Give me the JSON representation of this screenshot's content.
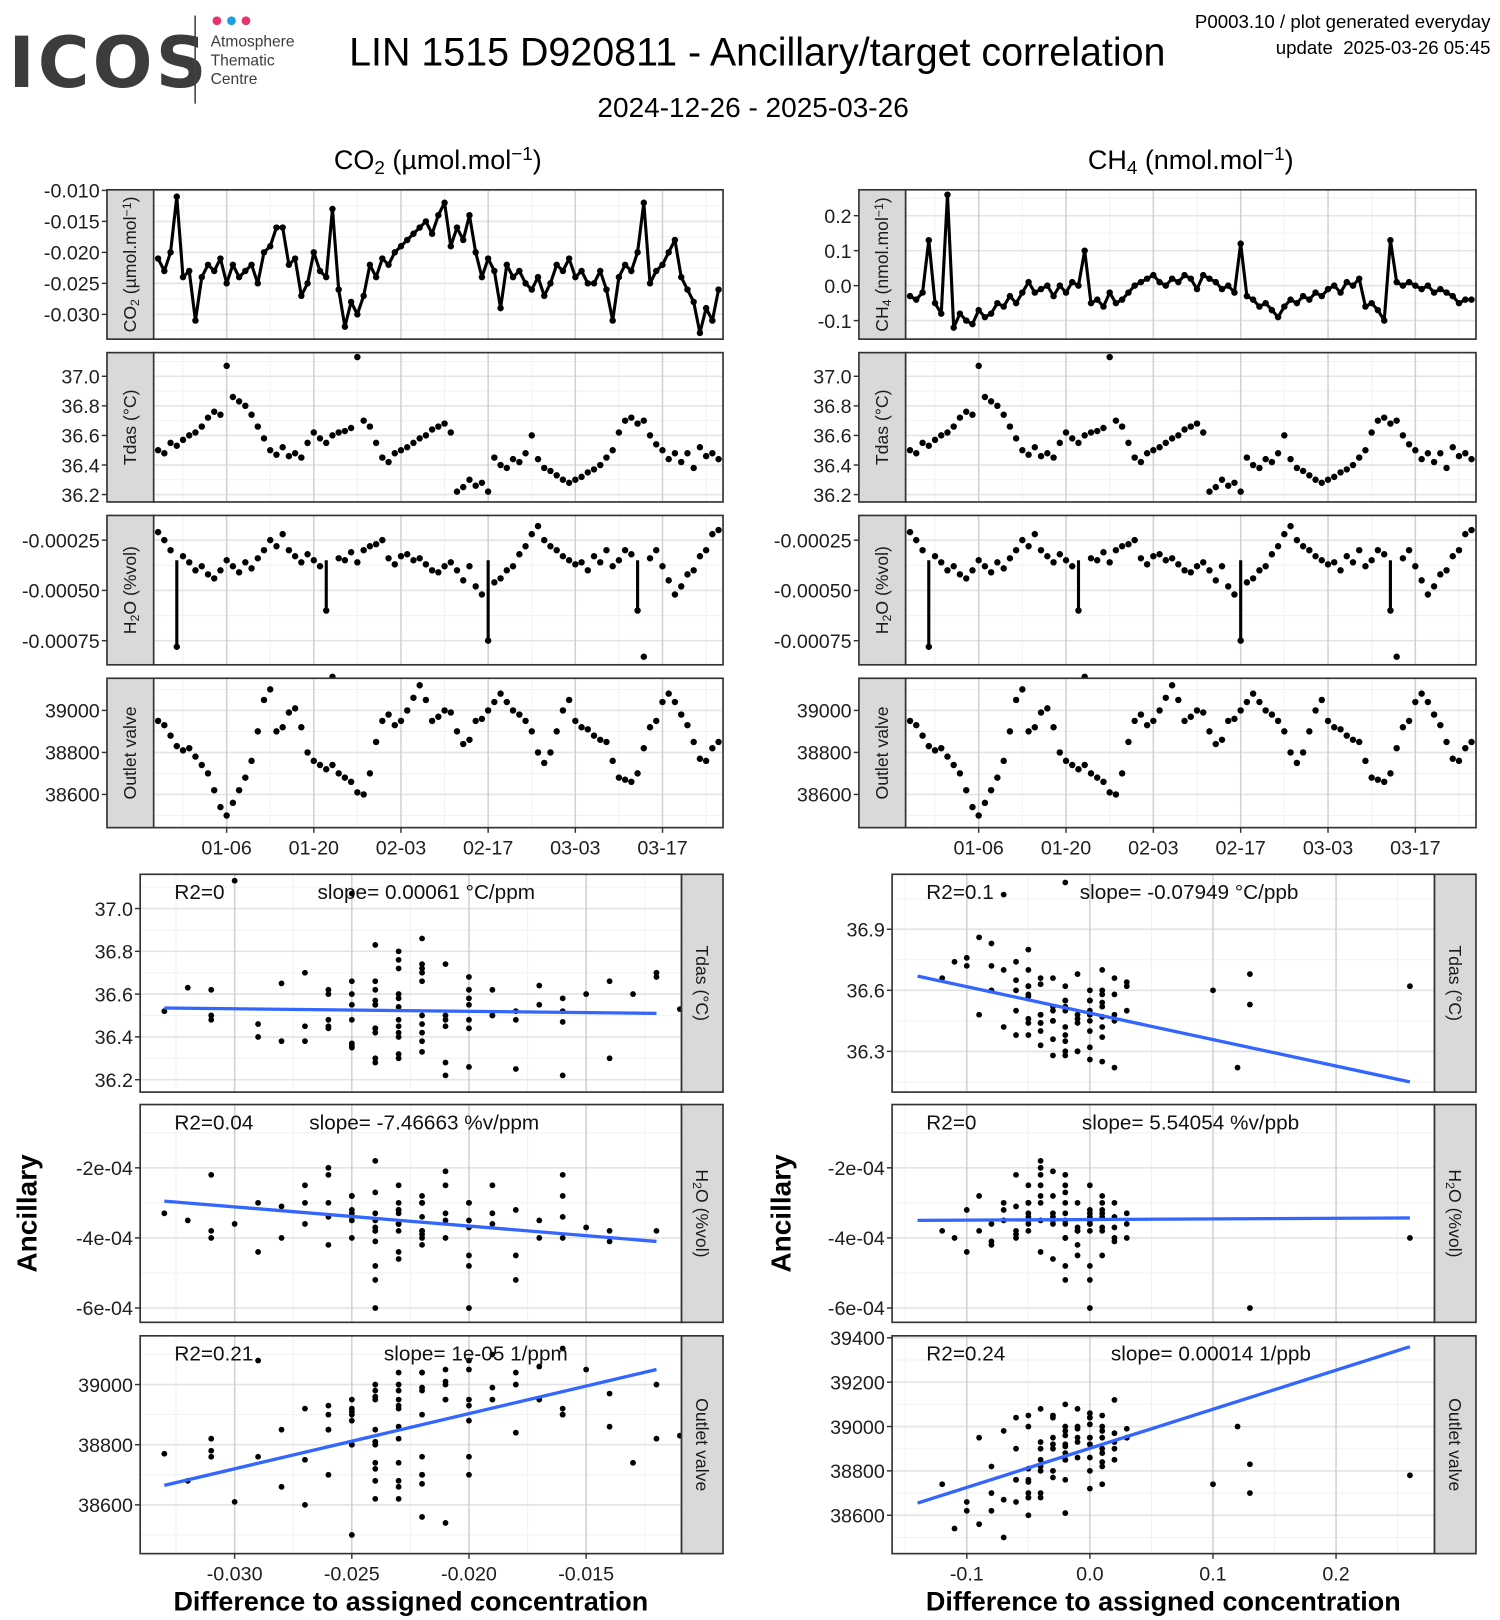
{
  "header": {
    "logo_text": "ICOS",
    "logo_sub": [
      "Atmosphere",
      "Thematic",
      "Centre"
    ],
    "logo_dot_colors": [
      "#e8336f",
      "#1aa0e0",
      "#e8336f"
    ],
    "title": "LIN 1515 D920811 - Ancillary/target correlation",
    "subtitle": "2024-12-26 - 2025-03-26",
    "meta_line1": "P0003.10 / plot generated everyday",
    "meta_line2": "update  2025-03-26 05:45"
  },
  "columns": [
    {
      "title": [
        {
          "t": "CO"
        },
        {
          "t": "2",
          "sub": true
        },
        {
          "t": " (µmol.mol"
        },
        {
          "t": "−1",
          "sup": true
        },
        {
          "t": ")"
        }
      ]
    },
    {
      "title": [
        {
          "t": "CH"
        },
        {
          "t": "4",
          "sub": true
        },
        {
          "t": " (nmol.mol"
        },
        {
          "t": "−1",
          "sup": true
        },
        {
          "t": ")"
        }
      ]
    }
  ],
  "chart_data": {
    "type": "faceted line + scatter",
    "colors": {
      "points": "#000000",
      "fit_line": "#3366ff",
      "strip_fill": "#d9d9d9"
    },
    "grid": true,
    "x_dates": [
      "12-26",
      "12-27",
      "12-28",
      "12-29",
      "12-30",
      "12-31",
      "01-01",
      "01-02",
      "01-03",
      "01-04",
      "01-05",
      "01-06",
      "01-07",
      "01-08",
      "01-09",
      "01-10",
      "01-11",
      "01-12",
      "01-13",
      "01-14",
      "01-15",
      "01-16",
      "01-17",
      "01-18",
      "01-19",
      "01-20",
      "01-21",
      "01-22",
      "01-23",
      "01-24",
      "01-25",
      "01-26",
      "01-27",
      "01-28",
      "01-29",
      "01-30",
      "01-31",
      "02-01",
      "02-02",
      "02-03",
      "02-04",
      "02-05",
      "02-06",
      "02-07",
      "02-08",
      "02-09",
      "02-10",
      "02-11",
      "02-12",
      "02-13",
      "02-14",
      "02-15",
      "02-16",
      "02-17",
      "02-18",
      "02-19",
      "02-20",
      "02-21",
      "02-22",
      "02-23",
      "02-24",
      "02-25",
      "02-26",
      "02-27",
      "02-28",
      "03-01",
      "03-02",
      "03-03",
      "03-04",
      "03-05",
      "03-06",
      "03-07",
      "03-08",
      "03-09",
      "03-10",
      "03-11",
      "03-12",
      "03-13",
      "03-14",
      "03-15",
      "03-16",
      "03-17",
      "03-18",
      "03-19",
      "03-20",
      "03-21",
      "03-22",
      "03-23",
      "03-24",
      "03-25",
      "03-26"
    ],
    "x_ticks": [
      "01-06",
      "01-20",
      "02-03",
      "02-17",
      "03-03",
      "03-17"
    ],
    "variables": {
      "co2": {
        "label": [
          {
            "t": "CO"
          },
          {
            "t": "2",
            "sub": true
          },
          {
            "t": " (µmol.mol"
          },
          {
            "t": "−1",
            "sup": true
          },
          {
            "t": ")"
          }
        ],
        "style": "line",
        "ylim": [
          -0.034,
          -0.0099
        ],
        "ticks": [
          "-0.010",
          "-0.015",
          "-0.020",
          "-0.025",
          "-0.030"
        ],
        "values": [
          -0.021,
          -0.023,
          -0.02,
          -0.011,
          -0.024,
          -0.023,
          -0.031,
          -0.024,
          -0.022,
          -0.023,
          -0.021,
          -0.025,
          -0.022,
          -0.024,
          -0.023,
          -0.022,
          -0.025,
          -0.02,
          -0.019,
          -0.016,
          -0.016,
          -0.022,
          -0.021,
          -0.027,
          -0.025,
          -0.02,
          -0.023,
          -0.024,
          -0.013,
          -0.026,
          -0.032,
          -0.028,
          -0.03,
          -0.027,
          -0.022,
          -0.024,
          -0.021,
          -0.022,
          -0.02,
          -0.019,
          -0.018,
          -0.017,
          -0.016,
          -0.015,
          -0.017,
          -0.014,
          -0.012,
          -0.019,
          -0.016,
          -0.018,
          -0.014,
          -0.02,
          -0.024,
          -0.021,
          -0.023,
          -0.029,
          -0.022,
          -0.024,
          -0.023,
          -0.025,
          -0.026,
          -0.024,
          -0.027,
          -0.025,
          -0.022,
          -0.023,
          -0.021,
          -0.024,
          -0.023,
          -0.025,
          -0.025,
          -0.023,
          -0.026,
          -0.031,
          -0.024,
          -0.022,
          -0.023,
          -0.02,
          -0.012,
          -0.025,
          -0.023,
          -0.022,
          -0.02,
          -0.018,
          -0.024,
          -0.026,
          -0.028,
          -0.033,
          -0.029,
          -0.031,
          -0.026
        ]
      },
      "ch4": {
        "label": [
          {
            "t": "CH"
          },
          {
            "t": "4",
            "sub": true
          },
          {
            "t": " (nmol.mol"
          },
          {
            "t": "−1",
            "sup": true
          },
          {
            "t": ")"
          }
        ],
        "style": "line",
        "ylim": [
          -0.153,
          0.274
        ],
        "ticks": [
          "0.2",
          "0.1",
          "0.0",
          "-0.1"
        ],
        "values": [
          -0.03,
          -0.04,
          -0.02,
          0.13,
          -0.05,
          -0.08,
          0.26,
          -0.12,
          -0.08,
          -0.1,
          -0.11,
          -0.07,
          -0.09,
          -0.08,
          -0.05,
          -0.06,
          -0.03,
          -0.05,
          -0.02,
          0.01,
          -0.02,
          -0.01,
          0.0,
          -0.03,
          0.0,
          -0.02,
          0.01,
          0.0,
          0.1,
          -0.05,
          -0.04,
          -0.06,
          -0.02,
          -0.05,
          -0.04,
          -0.02,
          0.0,
          0.01,
          0.02,
          0.03,
          0.01,
          0.0,
          0.02,
          0.01,
          0.03,
          0.02,
          -0.01,
          0.03,
          0.02,
          0.01,
          -0.01,
          0.0,
          -0.02,
          0.12,
          -0.03,
          -0.04,
          -0.06,
          -0.05,
          -0.07,
          -0.09,
          -0.06,
          -0.04,
          -0.05,
          -0.03,
          -0.04,
          -0.02,
          -0.03,
          -0.01,
          0.0,
          -0.02,
          0.01,
          0.0,
          0.02,
          -0.06,
          -0.05,
          -0.07,
          -0.1,
          0.13,
          0.01,
          0.0,
          0.01,
          0.0,
          -0.01,
          0.0,
          -0.02,
          -0.01,
          -0.02,
          -0.03,
          -0.05,
          -0.04,
          -0.04
        ]
      },
      "tdas": {
        "label": [
          {
            "t": "Tdas (°C)"
          }
        ],
        "style": "points",
        "ylim": [
          36.15,
          37.16
        ],
        "ticks": [
          "37.0",
          "36.8",
          "36.6",
          "36.4",
          "36.2"
        ],
        "values": [
          36.5,
          36.48,
          36.55,
          36.53,
          36.57,
          36.6,
          36.62,
          36.66,
          36.72,
          36.76,
          36.74,
          37.07,
          36.86,
          36.83,
          36.8,
          36.74,
          36.66,
          36.58,
          36.5,
          36.47,
          36.52,
          36.46,
          36.48,
          36.45,
          36.55,
          36.62,
          36.58,
          36.55,
          36.6,
          36.62,
          36.63,
          36.65,
          37.13,
          36.7,
          36.66,
          36.55,
          36.45,
          36.42,
          36.48,
          36.5,
          36.52,
          36.55,
          36.58,
          36.6,
          36.64,
          36.66,
          36.68,
          36.62,
          36.22,
          36.25,
          36.3,
          36.26,
          36.28,
          36.22,
          36.45,
          36.4,
          36.38,
          36.44,
          36.42,
          36.48,
          36.6,
          36.44,
          36.38,
          36.36,
          36.33,
          36.3,
          36.28,
          36.3,
          36.32,
          36.35,
          36.37,
          36.4,
          36.45,
          36.5,
          36.62,
          36.7,
          36.72,
          36.68,
          36.7,
          36.6,
          36.54,
          36.5,
          36.44,
          36.48,
          36.42,
          36.48,
          36.38,
          36.52,
          36.46,
          36.48,
          36.44
        ]
      },
      "h2o": {
        "label": [
          {
            "t": "H"
          },
          {
            "t": "2",
            "sub": true
          },
          {
            "t": "O (%vol)"
          }
        ],
        "style": "points",
        "ylim": [
          -0.00087,
          -0.000127
        ],
        "ticks": [
          "-0.00025",
          "-0.00050",
          "-0.00075"
        ],
        "values": [
          -0.00021,
          -0.00025,
          -0.0003,
          -0.00078,
          -0.00033,
          -0.00036,
          -0.0004,
          -0.00038,
          -0.00042,
          -0.00044,
          -0.0004,
          -0.00035,
          -0.00038,
          -0.00041,
          -0.00036,
          -0.00039,
          -0.00034,
          -0.0003,
          -0.00025,
          -0.00028,
          -0.00022,
          -0.0003,
          -0.00033,
          -0.00036,
          -0.00032,
          -0.00035,
          -0.00038,
          -0.0006,
          -0.00093,
          -0.00034,
          -0.00035,
          -0.00031,
          -0.00036,
          -0.0003,
          -0.00028,
          -0.00027,
          -0.00025,
          -0.00034,
          -0.00037,
          -0.00033,
          -0.00032,
          -0.00035,
          -0.00034,
          -0.00037,
          -0.0004,
          -0.00041,
          -0.00038,
          -0.00036,
          -0.0004,
          -0.00045,
          -0.00038,
          -0.00048,
          -0.00052,
          -0.00075,
          -0.00046,
          -0.00044,
          -0.0004,
          -0.00038,
          -0.00032,
          -0.00028,
          -0.00022,
          -0.00018,
          -0.00025,
          -0.00028,
          -0.0003,
          -0.00033,
          -0.00035,
          -0.00037,
          -0.00036,
          -0.0004,
          -0.00033,
          -0.00036,
          -0.0003,
          -0.00038,
          -0.00035,
          -0.0003,
          -0.00032,
          -0.0006,
          -0.00083,
          -0.00034,
          -0.0003,
          -0.00038,
          -0.00045,
          -0.00052,
          -0.00048,
          -0.00042,
          -0.0004,
          -0.00033,
          -0.0003,
          -0.00022,
          -0.0002
        ]
      },
      "outlet": {
        "label": [
          {
            "t": "Outlet valve"
          }
        ],
        "style": "points",
        "ylim": [
          38442,
          39153
        ],
        "ticks": [
          "39000",
          "38800",
          "38600"
        ],
        "values": [
          38950,
          38930,
          38880,
          38830,
          38810,
          38820,
          38780,
          38740,
          38700,
          38620,
          38540,
          38500,
          38560,
          38620,
          38680,
          38760,
          38900,
          39050,
          39100,
          38900,
          38920,
          38990,
          39010,
          38920,
          38800,
          38760,
          38740,
          38720,
          38740,
          38700,
          38680,
          38660,
          38610,
          38600,
          38700,
          38850,
          38950,
          38980,
          38930,
          38950,
          39000,
          39060,
          39120,
          39050,
          38950,
          38970,
          39000,
          38990,
          38900,
          38840,
          38860,
          38950,
          38960,
          39000,
          39040,
          39080,
          39040,
          39000,
          38980,
          38950,
          38900,
          38800,
          38750,
          38800,
          38900,
          39000,
          39050,
          38950,
          38920,
          38910,
          38880,
          38860,
          38850,
          38760,
          38680,
          38670,
          38660,
          38700,
          38820,
          38920,
          38950,
          39040,
          39080,
          39040,
          38980,
          38930,
          38850,
          38770,
          38760,
          38820,
          38850
        ]
      }
    },
    "timeseries": [
      {
        "panels": [
          "co2",
          "tdas",
          "h2o",
          "outlet"
        ]
      },
      {
        "panels": [
          "ch4",
          "tdas",
          "h2o",
          "outlet"
        ]
      }
    ],
    "scatter": [
      {
        "x_var": "co2",
        "xlabel": "Difference to assigned concentration",
        "ylabel": "Ancillary",
        "xlim": [
          -0.03403,
          -0.01093
        ],
        "x_ticks": [
          "-0.030",
          "-0.025",
          "-0.020",
          "-0.015"
        ],
        "panels": [
          {
            "y_var": "tdas",
            "strip": [
              {
                "t": "Tdas (°C)"
              }
            ],
            "ylim": [
              36.142,
              37.16
            ],
            "ticks": [
              "37.0",
              "36.8",
              "36.6",
              "36.4",
              "36.2"
            ],
            "r2": "R2=0",
            "slope": "slope= 0.00061 °C/ppm",
            "fit": [
              [
                -0.033,
                36.535
              ],
              [
                -0.012,
                36.51
              ]
            ]
          },
          {
            "y_var": "h2o",
            "strip": [
              {
                "t": "H"
              },
              {
                "t": "2",
                "sub": true
              },
              {
                "t": "O (%vol)"
              }
            ],
            "ylim": [
              -0.000641,
              -1.93e-05
            ],
            "ticks": [
              "-2e-04",
              "-4e-04",
              "-6e-04"
            ],
            "tick_values": [
              -0.0002,
              -0.0004,
              -0.0006
            ],
            "r2": "R2=0.04",
            "slope": "slope= -7.46663 %v/ppm",
            "fit": [
              [
                -0.033,
                -0.000295
              ],
              [
                -0.012,
                -0.00041
              ]
            ]
          },
          {
            "y_var": "outlet",
            "strip": [
              {
                "t": "Outlet valve"
              }
            ],
            "ylim": [
              38438,
              39162
            ],
            "ticks": [
              "39000",
              "38800",
              "38600"
            ],
            "r2": "R2=0.21",
            "slope": "slope= 1e-05 1/ppm",
            "fit": [
              [
                -0.033,
                38665
              ],
              [
                -0.012,
                39050
              ]
            ]
          }
        ]
      },
      {
        "x_var": "ch4",
        "xlabel": "Difference to assigned concentration",
        "ylabel": "Ancillary",
        "xlim": [
          -0.1607,
          0.28
        ],
        "x_ticks": [
          "-0.1",
          "0.0",
          "0.1",
          "0.2"
        ],
        "panels": [
          {
            "y_var": "tdas",
            "strip": [
              {
                "t": "Tdas (°C)"
              }
            ],
            "ylim": [
              36.1,
              37.17
            ],
            "ticks": [
              "36.9",
              "36.6",
              "36.3"
            ],
            "r2": "R2=0.1",
            "slope": "slope= -0.07949 °C/ppb",
            "fit": [
              [
                -0.14,
                36.67
              ],
              [
                0.26,
                36.15
              ]
            ]
          },
          {
            "y_var": "h2o",
            "strip": [
              {
                "t": "H"
              },
              {
                "t": "2",
                "sub": true
              },
              {
                "t": "O (%vol)"
              }
            ],
            "ylim": [
              -0.000641,
              -1.93e-05
            ],
            "ticks": [
              "-2e-04",
              "-4e-04",
              "-6e-04"
            ],
            "tick_values": [
              -0.0002,
              -0.0004,
              -0.0006
            ],
            "r2": "R2=0",
            "slope": "slope= 5.54054 %v/ppb",
            "fit": [
              [
                -0.14,
                -0.00035
              ],
              [
                0.26,
                -0.000343
              ]
            ]
          },
          {
            "y_var": "outlet",
            "strip": [
              {
                "t": "Outlet valve"
              }
            ],
            "ylim": [
              38427,
              39409
            ],
            "ticks": [
              "39400",
              "39200",
              "39000",
              "38800",
              "38600"
            ],
            "r2": "R2=0.24",
            "slope": "slope= 0.00014 1/ppb",
            "fit": [
              [
                -0.14,
                38655
              ],
              [
                0.26,
                39360
              ]
            ]
          }
        ]
      }
    ]
  }
}
